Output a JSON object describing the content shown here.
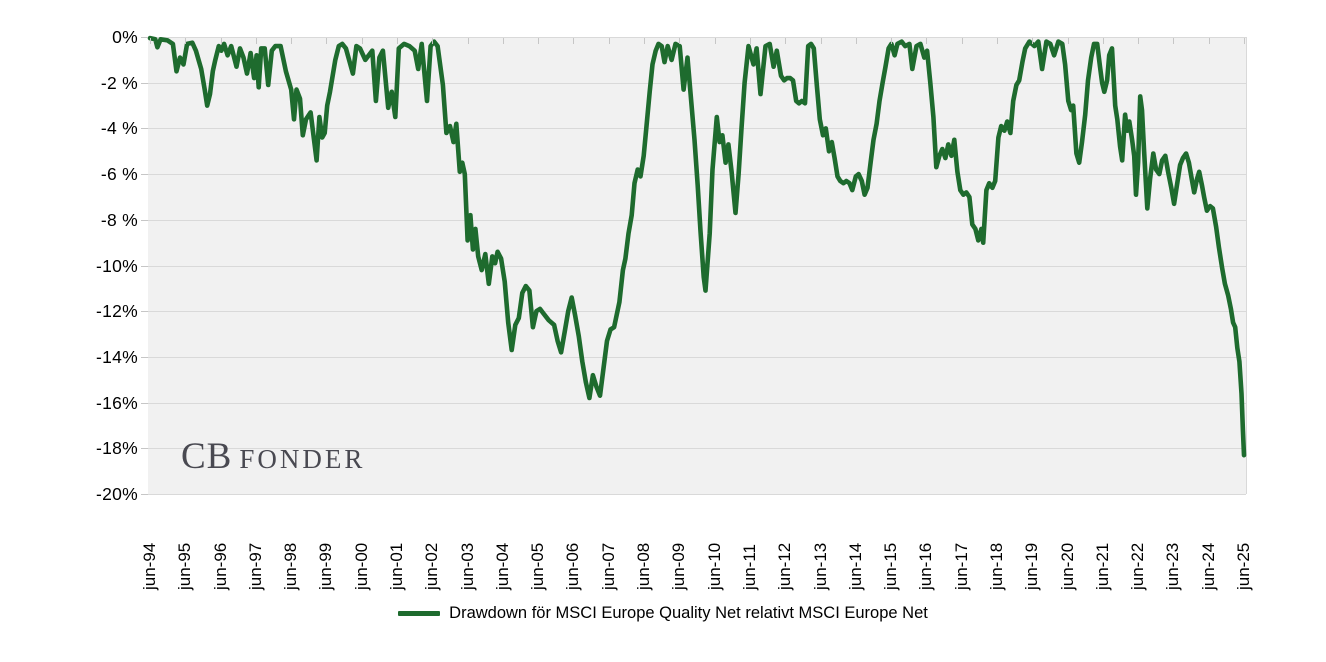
{
  "colors": {
    "line": "#1e6b2e",
    "plot_bg": "#f1f1f1",
    "grid": "#d9d9d9",
    "tick": "#c6c6c6",
    "text": "#000000",
    "watermark": "#3b3b44",
    "background": "#ffffff"
  },
  "watermark": {
    "cb": "CB",
    "fonder": "FONDER"
  },
  "legend": {
    "label": "Drawdown för MSCI Europe Quality Net relativt MSCI Europe Net"
  },
  "chart_data": {
    "type": "line",
    "title": "",
    "series": [
      {
        "name": "Drawdown för MSCI Europe Quality Net relativt MSCI Europe Net",
        "color": "#1e6b2e"
      }
    ],
    "grid": "horizontal",
    "legend_position": "bottom",
    "ylim": [
      -20,
      0
    ],
    "y_tick_step": 2,
    "y_tick_labels": [
      "0%",
      "-2 %",
      "-4 %",
      "-6 %",
      "-8 %",
      "-10%",
      "-12%",
      "-14%",
      "-16%",
      "-18%",
      "-20%"
    ],
    "x_range_years": [
      1994.5,
      2025.5
    ],
    "x_tick_labels": [
      "jun-94",
      "jun-95",
      "jun-96",
      "jun-97",
      "jun-98",
      "jun-99",
      "jun-00",
      "jun-01",
      "jun-02",
      "jun-03",
      "jun-04",
      "jun-05",
      "jun-06",
      "jun-07",
      "jun-08",
      "jun-09",
      "jun-10",
      "jun-11",
      "jun-12",
      "jun-13",
      "jun-14",
      "jun-15",
      "jun-16",
      "jun-17",
      "jun-18",
      "jun-19",
      "jun-20",
      "jun-21",
      "jun-22",
      "jun-23",
      "jun-24",
      "jun-25"
    ],
    "points": [
      [
        1994.5,
        -0.05
      ],
      [
        1994.65,
        -0.1
      ],
      [
        1994.71,
        -0.45
      ],
      [
        1994.8,
        -0.1
      ],
      [
        1995.0,
        -0.15
      ],
      [
        1995.15,
        -0.3
      ],
      [
        1995.25,
        -1.5
      ],
      [
        1995.35,
        -0.9
      ],
      [
        1995.45,
        -1.2
      ],
      [
        1995.55,
        -0.3
      ],
      [
        1995.7,
        -0.25
      ],
      [
        1995.8,
        -0.6
      ],
      [
        1995.95,
        -1.4
      ],
      [
        1996.05,
        -2.3
      ],
      [
        1996.12,
        -3.0
      ],
      [
        1996.2,
        -2.5
      ],
      [
        1996.28,
        -1.5
      ],
      [
        1996.35,
        -1.0
      ],
      [
        1996.45,
        -0.4
      ],
      [
        1996.52,
        -0.6
      ],
      [
        1996.6,
        -0.3
      ],
      [
        1996.7,
        -0.8
      ],
      [
        1996.8,
        -0.4
      ],
      [
        1996.95,
        -1.3
      ],
      [
        1997.05,
        -0.5
      ],
      [
        1997.15,
        -0.9
      ],
      [
        1997.25,
        -1.6
      ],
      [
        1997.35,
        -0.7
      ],
      [
        1997.45,
        -1.8
      ],
      [
        1997.52,
        -0.8
      ],
      [
        1997.58,
        -2.2
      ],
      [
        1997.65,
        -0.5
      ],
      [
        1997.75,
        -0.5
      ],
      [
        1997.85,
        -2.1
      ],
      [
        1997.95,
        -0.6
      ],
      [
        1998.05,
        -0.4
      ],
      [
        1998.2,
        -0.4
      ],
      [
        1998.35,
        -1.5
      ],
      [
        1998.5,
        -2.3
      ],
      [
        1998.58,
        -3.6
      ],
      [
        1998.65,
        -2.3
      ],
      [
        1998.75,
        -2.7
      ],
      [
        1998.83,
        -4.3
      ],
      [
        1998.92,
        -3.6
      ],
      [
        1999.05,
        -3.3
      ],
      [
        1999.22,
        -5.4
      ],
      [
        1999.3,
        -3.5
      ],
      [
        1999.38,
        -4.4
      ],
      [
        1999.45,
        -4.2
      ],
      [
        1999.52,
        -3.0
      ],
      [
        1999.6,
        -2.4
      ],
      [
        1999.75,
        -1.0
      ],
      [
        1999.85,
        -0.4
      ],
      [
        1999.95,
        -0.3
      ],
      [
        2000.05,
        -0.5
      ],
      [
        2000.25,
        -1.6
      ],
      [
        2000.35,
        -0.4
      ],
      [
        2000.45,
        -0.5
      ],
      [
        2000.6,
        -1.0
      ],
      [
        2000.8,
        -0.6
      ],
      [
        2000.9,
        -2.8
      ],
      [
        2001.0,
        -0.9
      ],
      [
        2001.1,
        -0.6
      ],
      [
        2001.25,
        -3.1
      ],
      [
        2001.35,
        -2.4
      ],
      [
        2001.45,
        -3.5
      ],
      [
        2001.55,
        -0.5
      ],
      [
        2001.7,
        -0.3
      ],
      [
        2001.85,
        -0.4
      ],
      [
        2002.0,
        -0.6
      ],
      [
        2002.1,
        -1.4
      ],
      [
        2002.2,
        -0.3
      ],
      [
        2002.35,
        -2.8
      ],
      [
        2002.45,
        -0.4
      ],
      [
        2002.55,
        -0.2
      ],
      [
        2002.65,
        -0.4
      ],
      [
        2002.8,
        -2.1
      ],
      [
        2002.9,
        -4.2
      ],
      [
        2003.0,
        -3.9
      ],
      [
        2003.1,
        -4.6
      ],
      [
        2003.18,
        -3.8
      ],
      [
        2003.28,
        -5.9
      ],
      [
        2003.35,
        -5.5
      ],
      [
        2003.42,
        -6.0
      ],
      [
        2003.5,
        -8.9
      ],
      [
        2003.58,
        -7.8
      ],
      [
        2003.65,
        -9.3
      ],
      [
        2003.72,
        -8.4
      ],
      [
        2003.8,
        -9.6
      ],
      [
        2003.9,
        -10.2
      ],
      [
        2004.0,
        -9.5
      ],
      [
        2004.1,
        -10.8
      ],
      [
        2004.2,
        -9.6
      ],
      [
        2004.28,
        -9.9
      ],
      [
        2004.35,
        -9.4
      ],
      [
        2004.45,
        -9.7
      ],
      [
        2004.55,
        -10.7
      ],
      [
        2004.65,
        -12.5
      ],
      [
        2004.75,
        -13.7
      ],
      [
        2004.85,
        -12.6
      ],
      [
        2004.95,
        -12.3
      ],
      [
        2005.05,
        -11.2
      ],
      [
        2005.15,
        -10.9
      ],
      [
        2005.25,
        -11.1
      ],
      [
        2005.35,
        -12.7
      ],
      [
        2005.45,
        -12.0
      ],
      [
        2005.55,
        -11.9
      ],
      [
        2005.65,
        -12.1
      ],
      [
        2005.8,
        -12.4
      ],
      [
        2005.95,
        -12.6
      ],
      [
        2006.05,
        -13.3
      ],
      [
        2006.15,
        -13.8
      ],
      [
        2006.25,
        -12.9
      ],
      [
        2006.35,
        -12.0
      ],
      [
        2006.45,
        -11.4
      ],
      [
        2006.55,
        -12.2
      ],
      [
        2006.65,
        -13.1
      ],
      [
        2006.75,
        -14.2
      ],
      [
        2006.85,
        -15.1
      ],
      [
        2006.95,
        -15.8
      ],
      [
        2007.05,
        -14.8
      ],
      [
        2007.15,
        -15.3
      ],
      [
        2007.25,
        -15.7
      ],
      [
        2007.35,
        -14.5
      ],
      [
        2007.45,
        -13.3
      ],
      [
        2007.55,
        -12.8
      ],
      [
        2007.65,
        -12.7
      ],
      [
        2007.8,
        -11.6
      ],
      [
        2007.9,
        -10.2
      ],
      [
        2007.97,
        -9.7
      ],
      [
        2008.06,
        -8.6
      ],
      [
        2008.15,
        -7.8
      ],
      [
        2008.23,
        -6.4
      ],
      [
        2008.32,
        -5.8
      ],
      [
        2008.4,
        -6.1
      ],
      [
        2008.49,
        -5.2
      ],
      [
        2008.57,
        -3.9
      ],
      [
        2008.66,
        -2.4
      ],
      [
        2008.74,
        -1.2
      ],
      [
        2008.83,
        -0.6
      ],
      [
        2008.91,
        -0.3
      ],
      [
        2009.0,
        -0.4
      ],
      [
        2009.08,
        -1.1
      ],
      [
        2009.17,
        -0.4
      ],
      [
        2009.28,
        -1.0
      ],
      [
        2009.39,
        -0.3
      ],
      [
        2009.51,
        -0.4
      ],
      [
        2009.62,
        -2.3
      ],
      [
        2009.73,
        -0.9
      ],
      [
        2009.82,
        -2.5
      ],
      [
        2009.93,
        -4.5
      ],
      [
        2010.02,
        -6.5
      ],
      [
        2010.1,
        -8.5
      ],
      [
        2010.19,
        -10.5
      ],
      [
        2010.24,
        -11.1
      ],
      [
        2010.36,
        -8.6
      ],
      [
        2010.44,
        -5.8
      ],
      [
        2010.56,
        -3.5
      ],
      [
        2010.64,
        -4.6
      ],
      [
        2010.72,
        -4.3
      ],
      [
        2010.81,
        -5.5
      ],
      [
        2010.89,
        -4.7
      ],
      [
        2010.98,
        -5.9
      ],
      [
        2011.09,
        -7.7
      ],
      [
        2011.18,
        -6.0
      ],
      [
        2011.26,
        -4.0
      ],
      [
        2011.35,
        -2.0
      ],
      [
        2011.46,
        -0.4
      ],
      [
        2011.6,
        -1.2
      ],
      [
        2011.69,
        -0.5
      ],
      [
        2011.8,
        -2.5
      ],
      [
        2011.94,
        -0.4
      ],
      [
        2012.06,
        -0.3
      ],
      [
        2012.17,
        -1.3
      ],
      [
        2012.26,
        -0.6
      ],
      [
        2012.38,
        -1.7
      ],
      [
        2012.47,
        -1.9
      ],
      [
        2012.55,
        -1.8
      ],
      [
        2012.64,
        -1.8
      ],
      [
        2012.72,
        -1.9
      ],
      [
        2012.81,
        -2.8
      ],
      [
        2012.89,
        -2.9
      ],
      [
        2012.97,
        -2.8
      ],
      [
        2013.06,
        -2.9
      ],
      [
        2013.15,
        -0.4
      ],
      [
        2013.23,
        -0.3
      ],
      [
        2013.31,
        -0.5
      ],
      [
        2013.4,
        -2.2
      ],
      [
        2013.48,
        -3.6
      ],
      [
        2013.57,
        -4.3
      ],
      [
        2013.65,
        -4.0
      ],
      [
        2013.74,
        -5.0
      ],
      [
        2013.82,
        -4.6
      ],
      [
        2013.9,
        -5.3
      ],
      [
        2013.98,
        -6.1
      ],
      [
        2014.06,
        -6.3
      ],
      [
        2014.15,
        -6.4
      ],
      [
        2014.23,
        -6.3
      ],
      [
        2014.32,
        -6.4
      ],
      [
        2014.4,
        -6.7
      ],
      [
        2014.5,
        -6.1
      ],
      [
        2014.58,
        -6.0
      ],
      [
        2014.67,
        -6.3
      ],
      [
        2014.75,
        -6.9
      ],
      [
        2014.83,
        -6.6
      ],
      [
        2014.92,
        -5.5
      ],
      [
        2015.0,
        -4.5
      ],
      [
        2015.09,
        -3.8
      ],
      [
        2015.17,
        -2.8
      ],
      [
        2015.26,
        -2.0
      ],
      [
        2015.34,
        -1.3
      ],
      [
        2015.43,
        -0.5
      ],
      [
        2015.51,
        -0.3
      ],
      [
        2015.6,
        -0.8
      ],
      [
        2015.68,
        -0.3
      ],
      [
        2015.8,
        -0.2
      ],
      [
        2015.9,
        -0.4
      ],
      [
        2016.02,
        -0.3
      ],
      [
        2016.1,
        -1.4
      ],
      [
        2016.22,
        -0.4
      ],
      [
        2016.33,
        -0.3
      ],
      [
        2016.44,
        -0.9
      ],
      [
        2016.52,
        -0.6
      ],
      [
        2016.61,
        -2.0
      ],
      [
        2016.7,
        -3.5
      ],
      [
        2016.78,
        -5.7
      ],
      [
        2016.87,
        -5.2
      ],
      [
        2016.95,
        -4.9
      ],
      [
        2017.04,
        -5.3
      ],
      [
        2017.12,
        -4.7
      ],
      [
        2017.21,
        -5.2
      ],
      [
        2017.29,
        -4.5
      ],
      [
        2017.38,
        -5.9
      ],
      [
        2017.46,
        -6.7
      ],
      [
        2017.55,
        -6.9
      ],
      [
        2017.63,
        -6.8
      ],
      [
        2017.72,
        -7.0
      ],
      [
        2017.8,
        -8.2
      ],
      [
        2017.89,
        -8.4
      ],
      [
        2017.97,
        -8.9
      ],
      [
        2018.06,
        -8.4
      ],
      [
        2018.11,
        -9.0
      ],
      [
        2018.2,
        -6.7
      ],
      [
        2018.28,
        -6.4
      ],
      [
        2018.37,
        -6.6
      ],
      [
        2018.45,
        -6.3
      ],
      [
        2018.54,
        -4.4
      ],
      [
        2018.62,
        -3.9
      ],
      [
        2018.71,
        -4.1
      ],
      [
        2018.79,
        -3.7
      ],
      [
        2018.88,
        -4.2
      ],
      [
        2018.96,
        -2.8
      ],
      [
        2019.05,
        -2.1
      ],
      [
        2019.13,
        -1.9
      ],
      [
        2019.22,
        -1.1
      ],
      [
        2019.3,
        -0.5
      ],
      [
        2019.42,
        -0.2
      ],
      [
        2019.56,
        -0.4
      ],
      [
        2019.67,
        -0.2
      ],
      [
        2019.78,
        -1.4
      ],
      [
        2019.9,
        -0.2
      ],
      [
        2020.01,
        -0.3
      ],
      [
        2020.12,
        -0.8
      ],
      [
        2020.24,
        -0.2
      ],
      [
        2020.35,
        -0.3
      ],
      [
        2020.43,
        -1.2
      ],
      [
        2020.52,
        -2.8
      ],
      [
        2020.6,
        -3.2
      ],
      [
        2020.66,
        -3.0
      ],
      [
        2020.75,
        -5.1
      ],
      [
        2020.83,
        -5.5
      ],
      [
        2020.91,
        -4.6
      ],
      [
        2021.0,
        -3.4
      ],
      [
        2021.08,
        -1.9
      ],
      [
        2021.17,
        -0.9
      ],
      [
        2021.25,
        -0.3
      ],
      [
        2021.34,
        -0.3
      ],
      [
        2021.42,
        -1.3
      ],
      [
        2021.48,
        -2.0
      ],
      [
        2021.54,
        -2.4
      ],
      [
        2021.62,
        -1.9
      ],
      [
        2021.68,
        -0.8
      ],
      [
        2021.76,
        -0.5
      ],
      [
        2021.85,
        -3.0
      ],
      [
        2021.91,
        -3.6
      ],
      [
        2021.99,
        -4.8
      ],
      [
        2022.05,
        -5.4
      ],
      [
        2022.13,
        -3.4
      ],
      [
        2022.19,
        -4.1
      ],
      [
        2022.25,
        -3.7
      ],
      [
        2022.33,
        -4.5
      ],
      [
        2022.39,
        -5.2
      ],
      [
        2022.44,
        -6.9
      ],
      [
        2022.5,
        -5.5
      ],
      [
        2022.56,
        -2.6
      ],
      [
        2022.61,
        -3.2
      ],
      [
        2022.67,
        -5.0
      ],
      [
        2022.76,
        -7.5
      ],
      [
        2022.84,
        -6.2
      ],
      [
        2022.93,
        -5.1
      ],
      [
        2023.01,
        -5.8
      ],
      [
        2023.1,
        -6.0
      ],
      [
        2023.18,
        -5.4
      ],
      [
        2023.27,
        -5.2
      ],
      [
        2023.35,
        -5.9
      ],
      [
        2023.44,
        -6.6
      ],
      [
        2023.52,
        -7.3
      ],
      [
        2023.6,
        -6.5
      ],
      [
        2023.69,
        -5.6
      ],
      [
        2023.77,
        -5.3
      ],
      [
        2023.86,
        -5.1
      ],
      [
        2023.94,
        -5.5
      ],
      [
        2024.03,
        -6.3
      ],
      [
        2024.09,
        -6.8
      ],
      [
        2024.17,
        -6.2
      ],
      [
        2024.23,
        -5.9
      ],
      [
        2024.31,
        -6.5
      ],
      [
        2024.37,
        -7.0
      ],
      [
        2024.45,
        -7.6
      ],
      [
        2024.54,
        -7.4
      ],
      [
        2024.62,
        -7.5
      ],
      [
        2024.71,
        -8.3
      ],
      [
        2024.79,
        -9.2
      ],
      [
        2024.88,
        -10.1
      ],
      [
        2024.96,
        -10.8
      ],
      [
        2025.05,
        -11.3
      ],
      [
        2025.13,
        -11.9
      ],
      [
        2025.19,
        -12.5
      ],
      [
        2025.25,
        -12.7
      ],
      [
        2025.31,
        -13.6
      ],
      [
        2025.37,
        -14.2
      ],
      [
        2025.43,
        -15.6
      ],
      [
        2025.47,
        -17.2
      ],
      [
        2025.5,
        -18.3
      ]
    ]
  }
}
